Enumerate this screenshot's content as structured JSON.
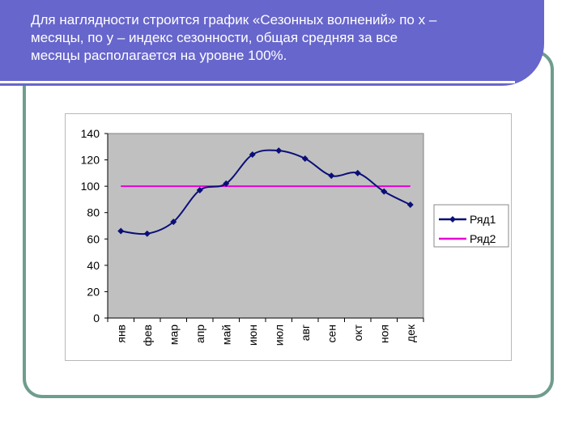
{
  "slide": {
    "title_lines": [
      "Для наглядности строится график «Сезонных волнений» по х –",
      "месяцы, по у – индекс сезонности, общая средняя за все",
      "месяцы располагается на уровне 100%."
    ]
  },
  "colors": {
    "band": "#6766cc",
    "plot_area": "#c0c0c0",
    "series1": "#0a0f78",
    "series2": "#e600d7",
    "frame": "#6f9d8f"
  },
  "chart_data": {
    "type": "line",
    "title": "",
    "xlabel": "",
    "ylabel": "",
    "categories": [
      "янв",
      "фев",
      "мар",
      "апр",
      "май",
      "июн",
      "июл",
      "авг",
      "сен",
      "окт",
      "ноя",
      "дек"
    ],
    "ylim": [
      0,
      140
    ],
    "yticks": [
      0,
      20,
      40,
      60,
      80,
      100,
      120,
      140
    ],
    "grid": false,
    "legend_position": "right",
    "series": [
      {
        "name": "Ряд1",
        "values": [
          66,
          64,
          73,
          97,
          102,
          124,
          127,
          121,
          108,
          110,
          96,
          86
        ],
        "markers": true
      },
      {
        "name": "Ряд2",
        "values": [
          100,
          100,
          100,
          100,
          100,
          100,
          100,
          100,
          100,
          100,
          100,
          100
        ],
        "markers": false
      }
    ]
  }
}
